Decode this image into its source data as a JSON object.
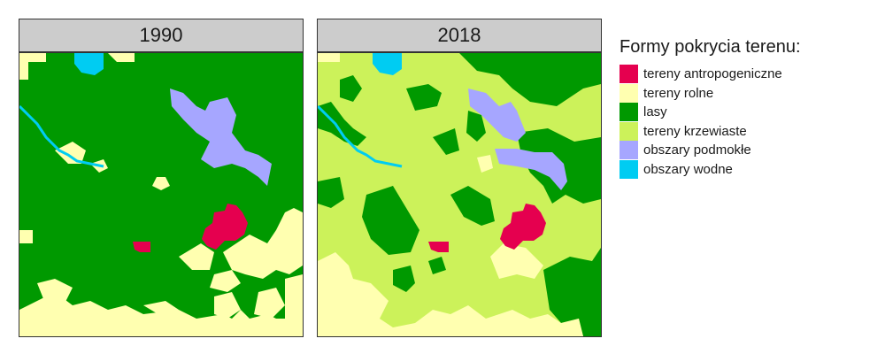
{
  "panels": [
    {
      "title": "1990"
    },
    {
      "title": "2018"
    }
  ],
  "legend": {
    "title": "Formy pokrycia terenu:",
    "items": [
      {
        "key": "anthro",
        "label": "tereny antropogeniczne",
        "color": "#e5004f"
      },
      {
        "key": "agri",
        "label": "tereny rolne",
        "color": "#ffffb0"
      },
      {
        "key": "forest",
        "label": "lasy",
        "color": "#009900"
      },
      {
        "key": "shrub",
        "label": "tereny krzewiaste",
        "color": "#ccf25a"
      },
      {
        "key": "wet",
        "label": "obszary podmokłe",
        "color": "#a6a6ff"
      },
      {
        "key": "water",
        "label": "obszary wodne",
        "color": "#00ccf2"
      }
    ]
  }
}
